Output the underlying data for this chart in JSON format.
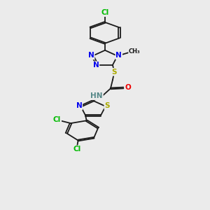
{
  "background_color": "#ebebeb",
  "bond_color": "#1a1a1a",
  "N_color": "#0000ee",
  "S_color": "#aaaa00",
  "O_color": "#ee0000",
  "Cl_color": "#00bb00",
  "H_color": "#558888",
  "C_color": "#1a1a1a",
  "font_size": 7.5,
  "bond_width": 1.3,
  "dbo": 0.045,
  "xlim": [
    0,
    10
  ],
  "ylim": [
    0,
    16
  ]
}
